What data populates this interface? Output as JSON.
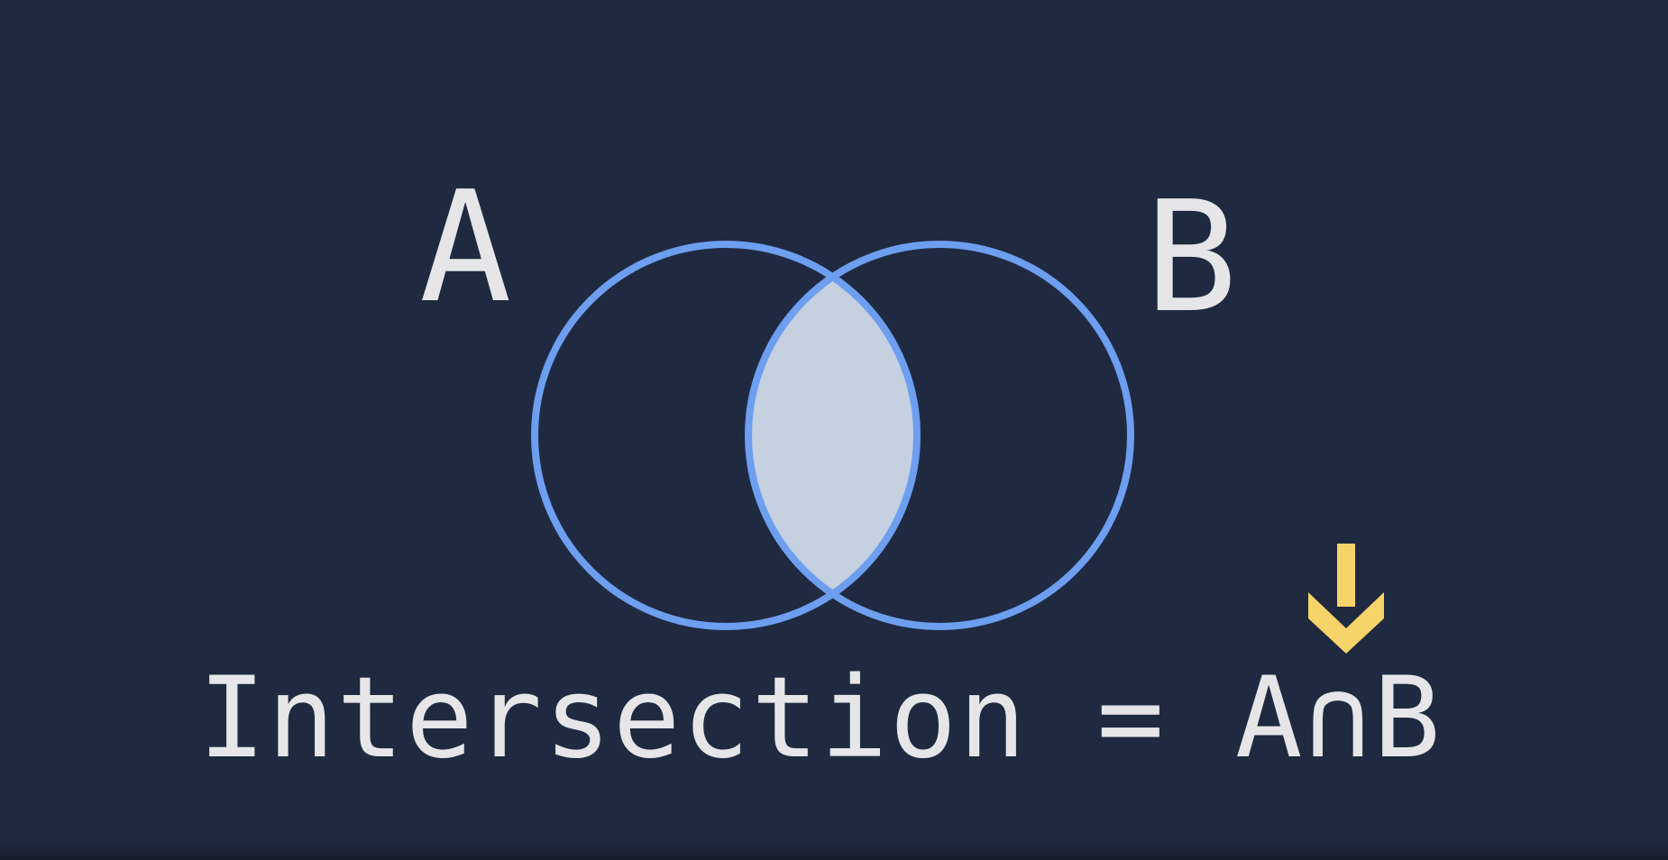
{
  "diagram": {
    "set_a_label": "A",
    "set_b_label": "B",
    "formula": {
      "text": "Intersection = A∩B"
    },
    "arrow": {
      "direction": "down"
    },
    "colors": {
      "background": "#1f2a40",
      "circle_stroke": "#6d9ef0",
      "intersection_fill": "#c5d0e0",
      "text": "#e6e6e8",
      "arrow": "#f7d469"
    }
  }
}
